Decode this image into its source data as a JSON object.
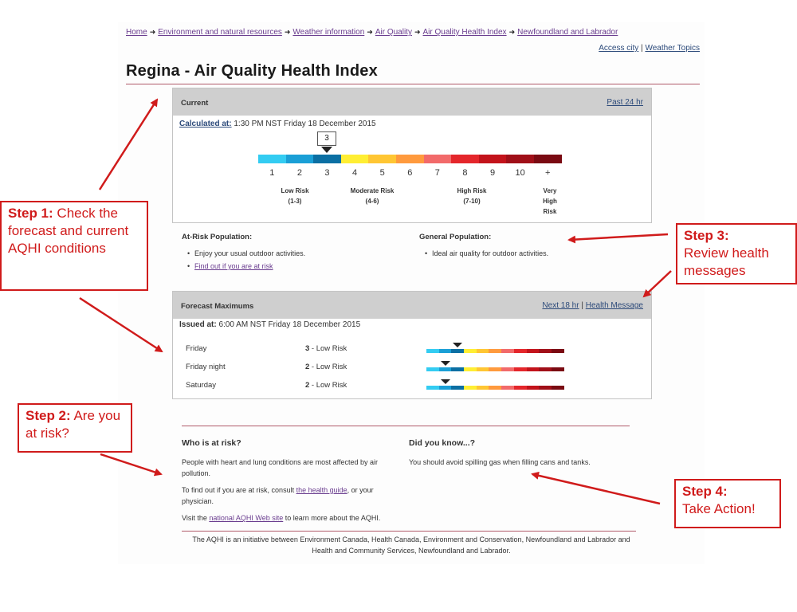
{
  "breadcrumb": {
    "items": [
      "Home",
      "Environment and natural resources",
      "Weather information",
      "Air Quality",
      "Air Quality Health Index",
      "Newfoundland and Labrador"
    ]
  },
  "top_links": {
    "access_city": "Access city",
    "separator": "|",
    "weather_topics": "Weather Topics"
  },
  "page_title": "Regina - Air Quality Health Index",
  "current": {
    "header": "Current",
    "past_link": "Past 24 hr",
    "calc_label": "Calculated at:",
    "calc_value": "1:30 PM NST Friday 18 December 2015",
    "marker_value": "3",
    "scale_numbers": [
      "1",
      "2",
      "3",
      "4",
      "5",
      "6",
      "7",
      "8",
      "9",
      "10",
      "+"
    ],
    "scale_colors": [
      "#33ccf2",
      "#1a9fd6",
      "#0b6fa3",
      "#ffee33",
      "#ffc633",
      "#ff9a3d",
      "#f26a6a",
      "#e4262b",
      "#c3131b",
      "#a00f18",
      "#7a0a12"
    ],
    "risk_low": {
      "label": "Low Risk",
      "range": "(1-3)"
    },
    "risk_moderate": {
      "label": "Moderate Risk",
      "range": "(4-6)"
    },
    "risk_high": {
      "label": "High Risk",
      "range": "(7-10)"
    },
    "risk_very_high": {
      "line1": "Very",
      "line2": "High",
      "line3": "Risk"
    }
  },
  "messages": {
    "at_risk_heading": "At-Risk Population:",
    "at_risk_item": "Enjoy your usual outdoor activities.",
    "at_risk_link": "Find out if you are at risk",
    "general_heading": "General Population:",
    "general_item": "Ideal air quality for outdoor activities."
  },
  "forecast": {
    "header": "Forecast Maximums",
    "next_link": "Next 18 hr",
    "separator": "|",
    "health_link": "Health Message",
    "issued_label": "Issued at:",
    "issued_value": "6:00 AM NST Friday 18 December 2015",
    "rows": [
      {
        "day": "Friday",
        "value": "3",
        "risk": " - Low Risk",
        "level": 3
      },
      {
        "day": "Friday night",
        "value": "2",
        "risk": " - Low Risk",
        "level": 2
      },
      {
        "day": "Saturday",
        "value": "2",
        "risk": " - Low Risk",
        "level": 2
      }
    ]
  },
  "who_at_risk": {
    "heading": "Who is at risk?",
    "p1": "People with heart and lung conditions are most affected by air pollution.",
    "p2_pre": "To find out if you are at risk, consult ",
    "p2_link": "the health guide",
    "p2_post": ", or your physician.",
    "p3_pre": "Visit the ",
    "p3_link": "national AQHI Web site",
    "p3_post": " to learn more about the AQHI."
  },
  "did_you_know": {
    "heading": "Did you know...?",
    "text": "You should avoid spilling gas when filling cans and tanks."
  },
  "footer": "The AQHI is an initiative between Environment Canada, Health Canada, Environment and Conservation, Newfoundland and Labrador and Health and Community Services, Newfoundland and Labrador.",
  "callouts": {
    "step1_bold": "Step 1:",
    "step1_text": " Check the forecast and current AQHI conditions",
    "step2_bold": "Step 2:",
    "step2_text": " Are you at risk?",
    "step3_bold": "Step 3:",
    "step3_text": "Review health messages",
    "step4_bold": "Step 4:",
    "step4_text": "Take Action!"
  },
  "annotation_color": "#d01b1b"
}
